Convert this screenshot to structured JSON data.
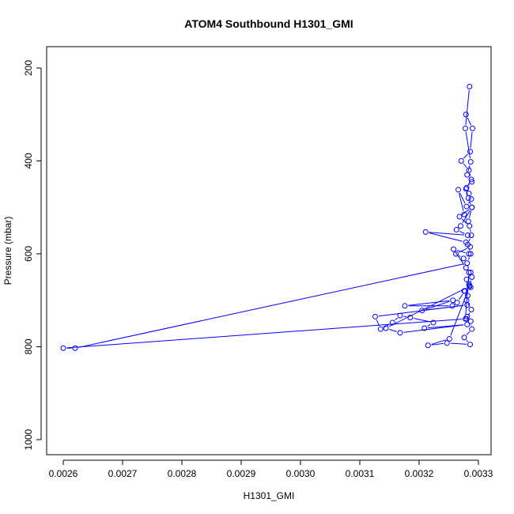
{
  "chart_data": {
    "type": "line",
    "title": "ATOM4 Southbound H1301_GMI",
    "xlabel": "H1301_GMI",
    "ylabel": "Pressure (mbar)",
    "xlim": [
      0.0026,
      0.0033
    ],
    "ylim": [
      1000,
      200
    ],
    "y_inverted": true,
    "x_ticks": [
      "0.0026",
      "0.0027",
      "0.0028",
      "0.0029",
      "0.0030",
      "0.0031",
      "0.0032",
      "0.0033"
    ],
    "y_ticks": [
      "200",
      "400",
      "600",
      "800",
      "1000"
    ],
    "grid": false,
    "series_color": "#0000ff",
    "marker": "open-circle",
    "x": [
      0.003285,
      0.003278,
      0.003287,
      0.003281,
      0.003289,
      0.00328,
      0.003284,
      0.003288,
      0.00328,
      0.003266,
      0.003276,
      0.003283,
      0.003289,
      0.00327,
      0.003263,
      0.003282,
      0.003211,
      0.003279,
      0.003286,
      0.003262,
      0.003275,
      0.003284,
      0.003258,
      0.003279,
      0.003287,
      0.00328,
      0.003284,
      0.003287,
      0.003277,
      0.003264,
      0.003256,
      0.003176,
      0.003257,
      0.003205,
      0.003281,
      0.003126,
      0.003135,
      0.003155,
      0.003168,
      0.003185,
      0.003224,
      0.003209,
      0.003281,
      0.003168,
      0.003144,
      0.003285,
      0.003251,
      0.003215,
      0.003247,
      0.003286,
      0.003276,
      0.003289,
      0.003287,
      0.003281,
      0.00328,
      0.003288,
      0.00328,
      0.003282,
      0.003276,
      0.003285,
      0.003289,
      0.003284,
      0.003278,
      0.0026,
      0.00262,
      0.003281,
      0.003287,
      0.003282,
      0.003288,
      0.003285,
      0.003268,
      0.003289,
      0.003283,
      0.003279,
      0.003288,
      0.003284,
      0.003271,
      0.003286,
      0.00329,
      0.003279
    ],
    "y": [
      240,
      330,
      402,
      430,
      445,
      458,
      470,
      482,
      498,
      462,
      515,
      530,
      500,
      540,
      548,
      560,
      553,
      575,
      585,
      600,
      610,
      600,
      590,
      630,
      640,
      655,
      665,
      672,
      680,
      705,
      712,
      712,
      700,
      722,
      710,
      735,
      762,
      748,
      733,
      737,
      748,
      760,
      752,
      770,
      760,
      670,
      783,
      797,
      792,
      795,
      780,
      762,
      745,
      735,
      740,
      720,
      700,
      690,
      680,
      668,
      650,
      640,
      740,
      803,
      803,
      620,
      600,
      580,
      560,
      540,
      520,
      500,
      480,
      460,
      440,
      420,
      400,
      380,
      330,
      300
    ]
  }
}
